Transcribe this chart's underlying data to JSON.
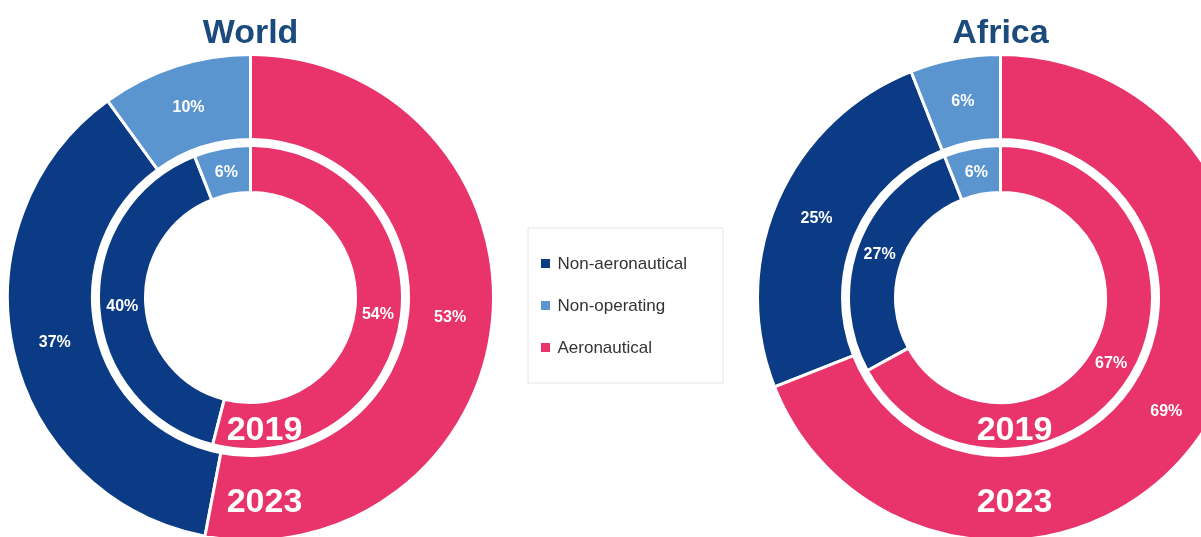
{
  "chart_data": [
    {
      "type": "donut",
      "title": "World",
      "categories": [
        "Non-aeronautical",
        "Non-operating",
        "Aeronautical"
      ],
      "colors": [
        "#0b3b85",
        "#5b95d0",
        "#e8336b"
      ],
      "legend": "right",
      "series": [
        {
          "name": "2019",
          "values": [
            40,
            6,
            54
          ],
          "value_labels": [
            "40%",
            "6%",
            "54%"
          ]
        },
        {
          "name": "2023",
          "values": [
            37,
            10,
            53
          ],
          "value_labels": [
            "37%",
            "10%",
            "53%"
          ]
        }
      ]
    },
    {
      "type": "donut",
      "title": "Africa",
      "categories": [
        null,
        null,
        null
      ],
      "colors": [
        "#0b3b85",
        "#5b95d0",
        "#e8336b"
      ],
      "series": [
        {
          "name": "2019",
          "values": [
            27,
            6,
            67
          ],
          "value_labels": [
            "27%",
            "6%",
            "67%"
          ]
        },
        {
          "name": "2023",
          "values": [
            25,
            6,
            69
          ],
          "value_labels": [
            "25%",
            "6%",
            "69%"
          ]
        }
      ]
    }
  ]
}
